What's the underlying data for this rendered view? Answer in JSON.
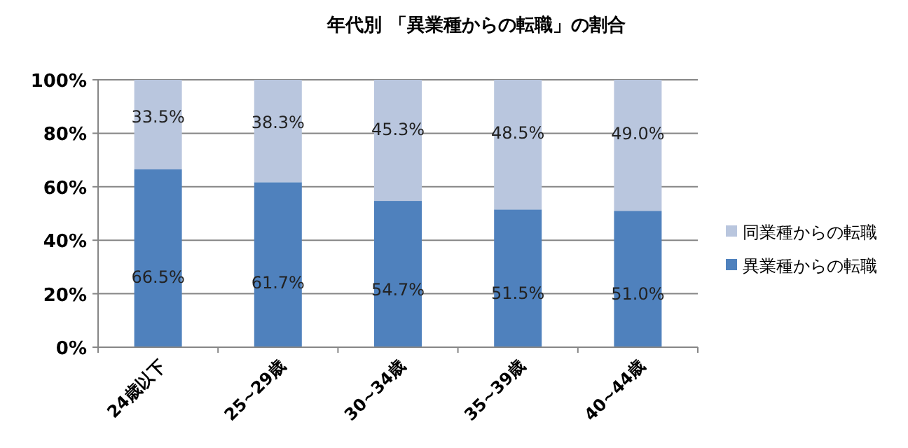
{
  "chart_data": {
    "type": "bar",
    "stacked": true,
    "title": "年代別 「異業種からの転職」の割合",
    "categories": [
      "24歳以下",
      "25~29歳",
      "30~34歳",
      "35~39歳",
      "40~44歳"
    ],
    "series": [
      {
        "name": "異業種からの転職",
        "color": "#4f81bd",
        "values": [
          66.5,
          61.7,
          54.7,
          51.5,
          51.0
        ],
        "value_labels": [
          "66.5%",
          "61.7%",
          "54.7%",
          "51.5%",
          "51.0%"
        ]
      },
      {
        "name": "同業種からの転職",
        "color": "#b9c6de",
        "values": [
          33.5,
          38.3,
          45.3,
          48.5,
          49.0
        ],
        "value_labels": [
          "33.5%",
          "38.3%",
          "45.3%",
          "48.5%",
          "49.0%"
        ]
      }
    ],
    "ylim": [
      0,
      100
    ],
    "yticks": [
      {
        "value": 0,
        "label": "0%"
      },
      {
        "value": 20,
        "label": "20%"
      },
      {
        "value": 40,
        "label": "40%"
      },
      {
        "value": 60,
        "label": "60%"
      },
      {
        "value": 80,
        "label": "80%"
      },
      {
        "value": 100,
        "label": "100%"
      }
    ],
    "grid": "y",
    "legend": "right"
  }
}
